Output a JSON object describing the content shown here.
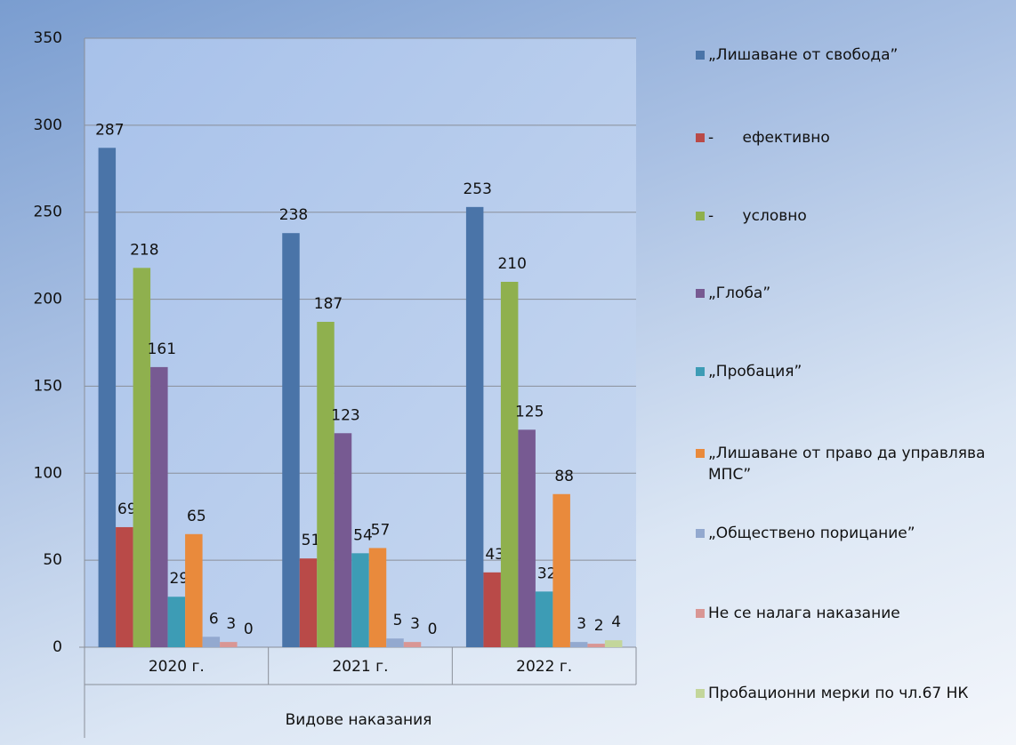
{
  "chart_data": {
    "type": "bar",
    "categories": [
      "2020 г.",
      "2021 г.",
      "2022 г."
    ],
    "x_label": "Видове наказания",
    "series": [
      {
        "name": "„Лишаване от свобода”",
        "color": "#4a74a8",
        "values": [
          287,
          238,
          253
        ]
      },
      {
        "name": "-      ефективно",
        "color": "#b94a48",
        "values": [
          69,
          51,
          43
        ]
      },
      {
        "name": "-      условно",
        "color": "#8fb04e",
        "values": [
          218,
          187,
          210
        ]
      },
      {
        "name": "„Глоба”",
        "color": "#775a92",
        "values": [
          161,
          123,
          125
        ]
      },
      {
        "name": "„Пробация”",
        "color": "#3d9cb5",
        "values": [
          29,
          54,
          32
        ]
      },
      {
        "name": "„Лишаване от право да управлява МПС”",
        "color": "#e98a3c",
        "values": [
          65,
          57,
          88
        ]
      },
      {
        "name": "„Обществено порицание”",
        "color": "#93a9cf",
        "values": [
          6,
          5,
          3
        ]
      },
      {
        "name": "Не се налага наказание",
        "color": "#d99694",
        "values": [
          3,
          3,
          2
        ]
      },
      {
        "name": "Пробационни мерки по чл.67 НК",
        "color": "#c3d69b",
        "values": [
          0,
          0,
          4
        ]
      }
    ],
    "ylim": [
      0,
      350
    ],
    "yticks": [
      0,
      50,
      100,
      150,
      200,
      250,
      300,
      350
    ],
    "grid": true,
    "legend": "right"
  }
}
